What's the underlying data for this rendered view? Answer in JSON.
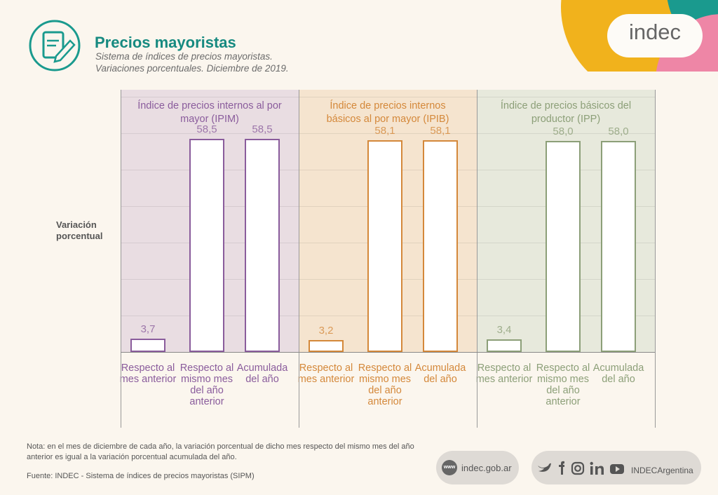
{
  "header": {
    "title": "Precios mayoristas",
    "subtitle": [
      "Sistema de índices de precios mayoristas.",
      "Variaciones porcentuales. Diciembre de 2019."
    ]
  },
  "logo": "indec",
  "y_axis_label": "Variación porcentual",
  "chart_data": [
    {
      "type": "bar",
      "title": "Índice de precios internos al por mayor (IPIM)",
      "categories": [
        "Respecto al mes anterior",
        "Respecto al mismo mes del año anterior",
        "Acumulada del año"
      ],
      "values": [
        3.7,
        58.5,
        58.5
      ],
      "value_labels": [
        "3,7",
        "58,5",
        "58,5"
      ],
      "color": "#8a5c9c",
      "background": "#e9dde2",
      "ylim": [
        0,
        72
      ],
      "yticks": [
        0,
        10,
        20,
        30,
        40,
        50,
        60,
        70
      ],
      "grid": true
    },
    {
      "type": "bar",
      "title": "Índice de precios internos básicos al por mayor (IPIB)",
      "categories": [
        "Respecto al mes anterior",
        "Respecto al mismo mes del año anterior",
        "Acumulada del año"
      ],
      "values": [
        3.2,
        58.1,
        58.1
      ],
      "value_labels": [
        "3,2",
        "58,1",
        "58,1"
      ],
      "color": "#d4883a",
      "background": "#f5e4cf",
      "ylim": [
        0,
        72
      ],
      "yticks": [
        0,
        10,
        20,
        30,
        40,
        50,
        60,
        70
      ],
      "grid": true
    },
    {
      "type": "bar",
      "title": "Índice de precios básicos del productor (IPP)",
      "categories": [
        "Respecto al mes anterior",
        "Respecto al mismo mes del año anterior",
        "Acumulada del año"
      ],
      "values": [
        3.4,
        58.0,
        58.0
      ],
      "value_labels": [
        "3,4",
        "58,0",
        "58,0"
      ],
      "color": "#8c9f78",
      "background": "#e7e9dc",
      "ylim": [
        0,
        72
      ],
      "yticks": [
        0,
        10,
        20,
        30,
        40,
        50,
        60,
        70
      ],
      "grid": true
    }
  ],
  "note": "Nota: en el mes de diciembre de cada año, la variación porcentual de dicho mes respecto del mismo mes del año anterior es igual a la variación porcentual acumulada del año.",
  "source": "Fuente: INDEC - Sistema de índices de precios mayoristas (SIPM)",
  "footer": {
    "www": "www",
    "web": "indec.gob.ar",
    "social": "INDECArgentina"
  }
}
